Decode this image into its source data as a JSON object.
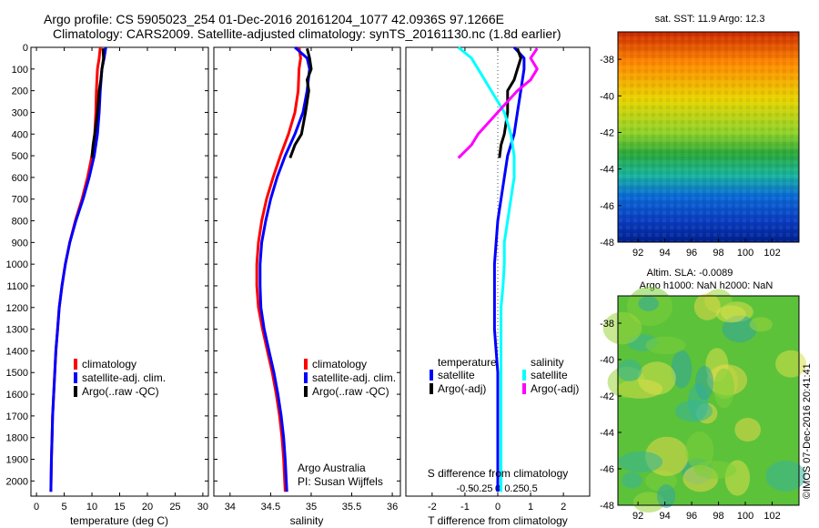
{
  "header": {
    "title_line1": "Argo profile: CS 5905023_254 01-Dec-2016 20161204_1077 42.0936S 97.1266E",
    "title_line2": "Climatology: CARS2009. Satellite-adjusted climatology: synTS_20161130.nc (1.8d earlier)"
  },
  "colors": {
    "climatology": "#ff0000",
    "satellite": "#0000ff",
    "argo": "#000000",
    "salinity_satellite": "#00ffff",
    "salinity_argo": "#ff00ff"
  },
  "chart_data": [
    {
      "type": "line",
      "name": "temperature-profile",
      "xlabel": "temperature (deg C)",
      "xlim": [
        -1,
        31
      ],
      "ylim": [
        2070,
        0
      ],
      "xticks": [
        0,
        5,
        10,
        15,
        20,
        25,
        30
      ],
      "yticks": [
        0,
        100,
        200,
        300,
        400,
        500,
        600,
        700,
        800,
        900,
        1000,
        1100,
        1200,
        1300,
        1400,
        1500,
        1600,
        1700,
        1800,
        1900,
        2000
      ],
      "legend": [
        "climatology",
        "satellite-adj. clim.",
        "Argo(..raw -QC)"
      ],
      "series": [
        {
          "name": "climatology",
          "color": "#ff0000",
          "x": [
            11.5,
            11.3,
            11.0,
            10.8,
            10.7,
            10.5,
            10.0,
            9.2,
            8.2,
            7.0,
            6.0,
            5.2,
            4.6,
            4.1,
            3.8,
            3.5,
            3.3,
            3.1,
            2.9,
            2.8,
            2.7,
            2.6
          ],
          "y": [
            0,
            50,
            100,
            200,
            300,
            400,
            500,
            600,
            700,
            800,
            900,
            1000,
            1100,
            1200,
            1300,
            1400,
            1500,
            1600,
            1700,
            1800,
            1900,
            2050
          ]
        },
        {
          "name": "satellite-adj. clim.",
          "color": "#0000ff",
          "x": [
            12.5,
            12.2,
            11.8,
            11.5,
            11.3,
            11.0,
            10.4,
            9.5,
            8.4,
            7.1,
            6.0,
            5.2,
            4.6,
            4.1,
            3.8,
            3.5,
            3.3,
            3.1,
            2.9,
            2.8,
            2.7,
            2.6
          ],
          "y": [
            0,
            50,
            100,
            200,
            300,
            400,
            500,
            600,
            700,
            800,
            900,
            1000,
            1100,
            1200,
            1300,
            1400,
            1500,
            1600,
            1700,
            1800,
            1900,
            2050
          ]
        },
        {
          "name": "Argo(..raw -QC)",
          "color": "#000000",
          "x": [
            12.0,
            12.1,
            11.8,
            11.6,
            11.3,
            11.0,
            10.5,
            10.2,
            10.0
          ],
          "y": [
            5,
            50,
            100,
            150,
            200,
            300,
            400,
            450,
            510
          ]
        }
      ]
    },
    {
      "type": "line",
      "name": "salinity-profile",
      "xlabel": "salinity",
      "xlim": [
        33.8,
        36.1
      ],
      "ylim": [
        2070,
        0
      ],
      "xticks": [
        34,
        34.5,
        35,
        35.5,
        36
      ],
      "xticklabels": [
        "34",
        "34.5",
        "35",
        "35.5",
        "36"
      ],
      "legend": [
        "climatology",
        "satellite-adj. clim.",
        "Argo(..raw -QC)"
      ],
      "note": [
        "Argo Australia",
        "PI: Susan Wijffels"
      ],
      "series": [
        {
          "name": "climatology",
          "color": "#ff0000",
          "x": [
            34.85,
            34.87,
            34.85,
            34.84,
            34.8,
            34.72,
            34.62,
            34.53,
            34.45,
            34.39,
            34.35,
            34.33,
            34.33,
            34.35,
            34.4,
            34.46,
            34.52,
            34.57,
            34.61,
            34.64,
            34.66,
            34.68
          ],
          "y": [
            0,
            50,
            100,
            200,
            300,
            400,
            500,
            600,
            700,
            800,
            900,
            1000,
            1100,
            1200,
            1300,
            1400,
            1500,
            1600,
            1700,
            1800,
            1900,
            2050
          ]
        },
        {
          "name": "satellite-adj. clim.",
          "color": "#0000ff",
          "x": [
            34.8,
            34.95,
            34.98,
            34.95,
            34.9,
            34.8,
            34.68,
            34.58,
            34.5,
            34.44,
            34.39,
            34.37,
            34.37,
            34.38,
            34.42,
            34.48,
            34.54,
            34.59,
            34.63,
            34.66,
            34.68,
            34.7
          ],
          "y": [
            0,
            50,
            100,
            200,
            300,
            400,
            500,
            600,
            700,
            800,
            900,
            1000,
            1100,
            1200,
            1300,
            1400,
            1500,
            1600,
            1700,
            1800,
            1900,
            2050
          ]
        },
        {
          "name": "Argo(..raw -QC)",
          "color": "#000000",
          "x": [
            34.95,
            34.98,
            35.0,
            34.95,
            34.97,
            34.93,
            34.88,
            34.8,
            34.74
          ],
          "y": [
            5,
            50,
            100,
            150,
            200,
            300,
            400,
            450,
            510
          ]
        }
      ]
    },
    {
      "type": "line",
      "name": "difference-profile",
      "xlabel": "T difference from climatology",
      "top_label": "S difference from climatology",
      "xlim": [
        -2.8,
        2.8
      ],
      "ylim": [
        2070,
        0
      ],
      "xticks": [
        -2,
        -1,
        0,
        1,
        2
      ],
      "xticklabels": [
        "-2",
        "-1",
        "0",
        "1",
        "2"
      ],
      "top_ticks": [
        -0.5,
        -0.25,
        0,
        0.25,
        0.5
      ],
      "top_ticklabels": [
        "-0.5",
        "-0.25",
        "0",
        "0.25",
        "0.5"
      ],
      "legend_headers": [
        "temperature",
        "salinity"
      ],
      "legend": [
        "satellite",
        "Argo(-adj)",
        "satellite",
        "Argo(-adj)"
      ],
      "series": [
        {
          "name": "temperature satellite",
          "color": "#0000ff",
          "x": [
            0.5,
            0.8,
            0.8,
            0.7,
            0.6,
            0.5,
            0.3,
            0.2,
            0.1,
            0.0,
            -0.05,
            -0.1,
            -0.1,
            -0.1,
            -0.1,
            -0.05,
            0.0,
            0.0,
            0.0,
            0.0,
            0.0,
            0.0
          ],
          "y": [
            0,
            50,
            100,
            200,
            300,
            400,
            500,
            600,
            700,
            800,
            900,
            1000,
            1100,
            1200,
            1300,
            1400,
            1500,
            1600,
            1700,
            1800,
            1900,
            2050
          ]
        },
        {
          "name": "temperature Argo(-adj)",
          "color": "#000000",
          "x": [
            0.6,
            0.7,
            0.6,
            0.5,
            0.3,
            0.3,
            0.2,
            0.1,
            0.05
          ],
          "y": [
            5,
            50,
            100,
            150,
            200,
            300,
            400,
            450,
            510
          ]
        },
        {
          "name": "salinity satellite",
          "color": "#00ffff",
          "x": [
            -0.6,
            -0.4,
            -0.3,
            -0.1,
            0.1,
            0.2,
            0.25,
            0.25,
            0.2,
            0.15,
            0.1,
            0.1,
            0.08,
            0.05,
            0.05,
            0.05,
            0.05,
            0.05,
            0.05,
            0.05,
            0.05,
            0.05
          ],
          "y": [
            0,
            50,
            100,
            200,
            300,
            400,
            500,
            600,
            700,
            800,
            900,
            1000,
            1100,
            1200,
            1300,
            1400,
            1500,
            1600,
            1700,
            1800,
            1900,
            2050
          ]
        },
        {
          "name": "salinity Argo(-adj)",
          "color": "#ff00ff",
          "x": [
            0.6,
            0.5,
            0.6,
            0.5,
            0.3,
            0.0,
            -0.3,
            -0.4,
            -0.6
          ],
          "y": [
            5,
            50,
            100,
            150,
            200,
            300,
            400,
            450,
            510
          ]
        }
      ]
    },
    {
      "type": "heatmap",
      "name": "sst-map",
      "title": "sat. SST: 11.9 Argo: 12.3",
      "xticks": [
        92,
        94,
        96,
        98,
        100,
        102
      ],
      "yticks": [
        -38,
        -40,
        -42,
        -44,
        -46,
        -48
      ],
      "xlim": [
        90.5,
        104
      ],
      "ylim": [
        -48,
        -36.5
      ]
    },
    {
      "type": "heatmap",
      "name": "sla-map",
      "title_line1": "Altim. SLA: -0.0089",
      "title_line2": "Argo h1000: NaN h2000: NaN",
      "side_label": "©IMOS 07-Dec-2016 20:41:41",
      "xticks": [
        92,
        94,
        96,
        98,
        100,
        102
      ],
      "yticks": [
        -38,
        -40,
        -42,
        -44,
        -46,
        -48
      ],
      "xlim": [
        90.5,
        104
      ],
      "ylim": [
        -48,
        -36.5
      ]
    }
  ]
}
